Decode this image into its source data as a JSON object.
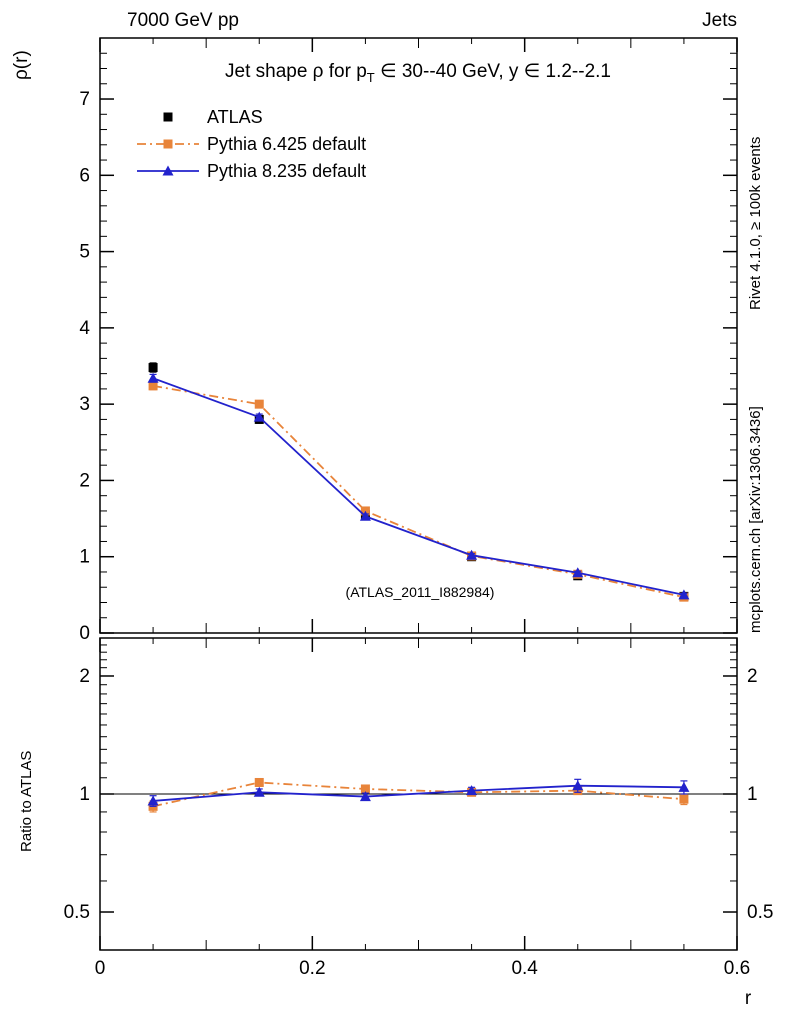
{
  "labels": {
    "header_left": "7000 GeV pp",
    "header_right": "Jets",
    "title_pre": "Jet shape ρ for p",
    "title_sub": "T",
    "title_post": " ∈ 30--40 GeV, y ∈ 1.2--2.1",
    "ylabel": "ρ(r)",
    "ratio_ylabel": "Ratio to ATLAS",
    "xlabel": "r",
    "watermark": "(ATLAS_2011_I882984)",
    "side_top": "Rivet 4.1.0, ≥ 100k events",
    "side_bottom": "mcplots.cern.ch [arXiv:1306.3436]"
  },
  "chart_data": {
    "type": "line",
    "title": "Jet shape ρ for p_T ∈ 30--40 GeV, y ∈ 1.2--2.1",
    "xlabel": "r",
    "ylabel": "ρ(r)",
    "ratio_ylabel": "Ratio to ATLAS",
    "legend_position": "top-left-inside",
    "grid": false,
    "xlim": [
      0,
      0.6
    ],
    "ylim": [
      0,
      7.8
    ],
    "ratio_ylim": [
      0.4,
      2.5
    ],
    "ratio_yscale": "log",
    "xticks": [
      0,
      0.2,
      0.4,
      0.6
    ],
    "yticks": [
      0,
      1,
      2,
      3,
      4,
      5,
      6,
      7
    ],
    "ratio_yticks": [
      0.5,
      1,
      2
    ],
    "x": [
      0.05,
      0.15,
      0.25,
      0.35,
      0.45,
      0.55
    ],
    "series": [
      {
        "name": "ATLAS",
        "color": "#000000",
        "marker": "square",
        "line": "none",
        "values": [
          3.48,
          2.8,
          1.55,
          1.0,
          0.75,
          0.48
        ],
        "errors": [
          0.06,
          0.05,
          0.04,
          0.03,
          0.02,
          0.02
        ]
      },
      {
        "name": "Pythia 6.425 default",
        "color": "#e8843a",
        "marker": "square",
        "line": "dashdot",
        "values": [
          3.24,
          3.0,
          1.6,
          1.01,
          0.77,
          0.47
        ],
        "errors": [
          0.05,
          0.04,
          0.03,
          0.02,
          0.02,
          0.02
        ],
        "ratio": [
          0.93,
          1.07,
          1.03,
          1.01,
          1.02,
          0.97
        ],
        "ratio_errors": [
          0.03,
          0.02,
          0.02,
          0.02,
          0.02,
          0.03
        ]
      },
      {
        "name": "Pythia 8.235 default",
        "color": "#2222cc",
        "marker": "triangle",
        "line": "solid",
        "values": [
          3.34,
          2.83,
          1.53,
          1.02,
          0.79,
          0.5
        ],
        "errors": [
          0.05,
          0.04,
          0.03,
          0.02,
          0.02,
          0.02
        ],
        "ratio": [
          0.96,
          1.01,
          0.985,
          1.02,
          1.05,
          1.04
        ],
        "ratio_errors": [
          0.03,
          0.02,
          0.02,
          0.02,
          0.04,
          0.04
        ]
      }
    ]
  }
}
